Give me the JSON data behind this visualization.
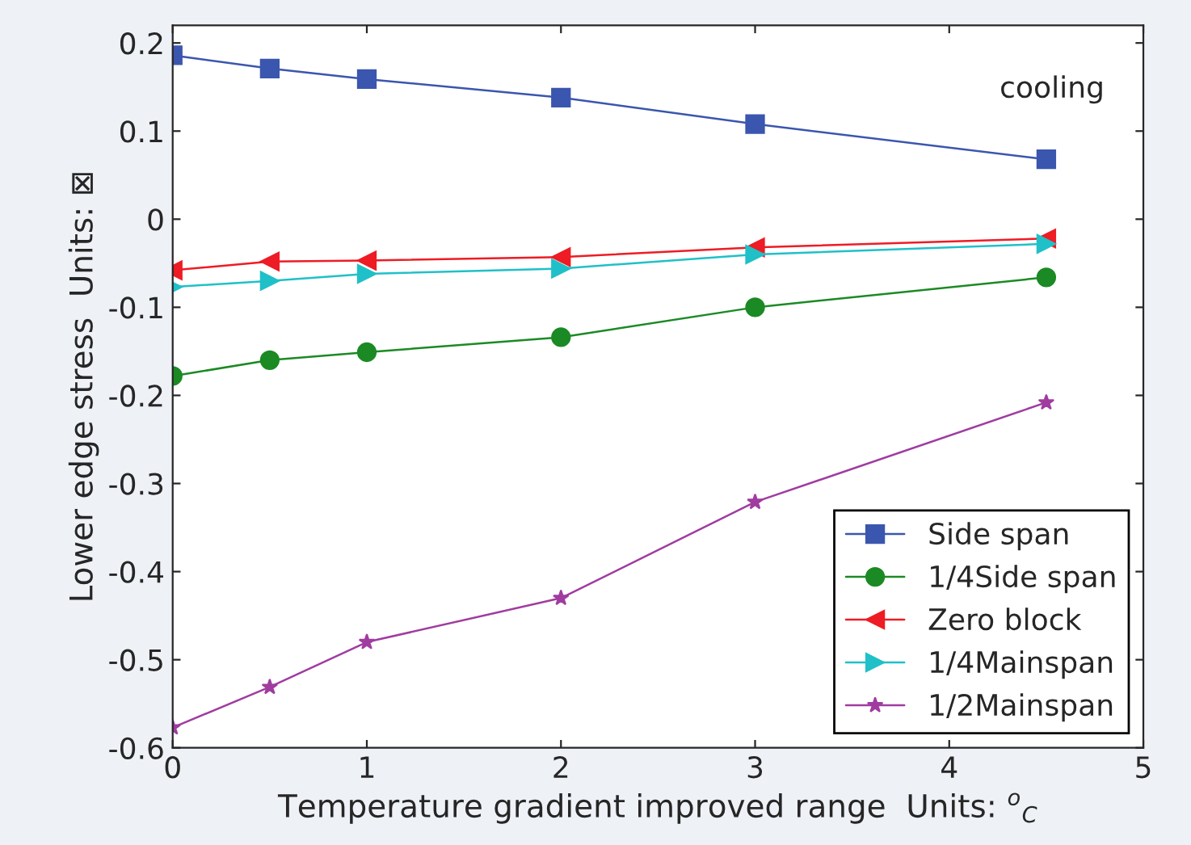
{
  "chart_data": {
    "type": "line",
    "xlabel": "Temperature gradient improved range  Units: $^{o}$$_{C}$",
    "ylabel": "Lower edge stress  Units: ⊠",
    "x": [
      0,
      0.5,
      1,
      2,
      3,
      4.5
    ],
    "series": [
      {
        "name": "Side span",
        "color": "#3b56ae",
        "marker": "square",
        "values": [
          0.186,
          0.171,
          0.159,
          0.138,
          0.108,
          0.068
        ]
      },
      {
        "name": "1/4Side span",
        "color": "#1b8a24",
        "marker": "circle",
        "values": [
          -0.178,
          -0.16,
          -0.151,
          -0.134,
          -0.1,
          -0.066
        ]
      },
      {
        "name": "Zero block",
        "color": "#ee1c24",
        "marker": "triangle-left",
        "values": [
          -0.058,
          -0.048,
          -0.047,
          -0.043,
          -0.032,
          -0.022
        ]
      },
      {
        "name": "1/4Mainspan",
        "color": "#20c0c8",
        "marker": "triangle-right",
        "values": [
          -0.077,
          -0.07,
          -0.062,
          -0.056,
          -0.04,
          -0.028
        ]
      },
      {
        "name": "1/2Mainspan",
        "color": "#a03ca0",
        "marker": "star",
        "values": [
          -0.577,
          -0.531,
          -0.48,
          -0.43,
          -0.321,
          -0.208
        ]
      }
    ],
    "annotations": [
      "cooling"
    ],
    "xlim": [
      0,
      5
    ],
    "xticks": [
      0,
      1,
      2,
      3,
      4,
      5
    ],
    "ylim": [
      -0.6,
      0.22
    ],
    "yticks": [
      -0.6,
      -0.5,
      -0.4,
      -0.3,
      -0.2,
      -0.1,
      0,
      0.1,
      0.2
    ],
    "grid": false,
    "legend": "bottom right",
    "line_style": "solid"
  }
}
